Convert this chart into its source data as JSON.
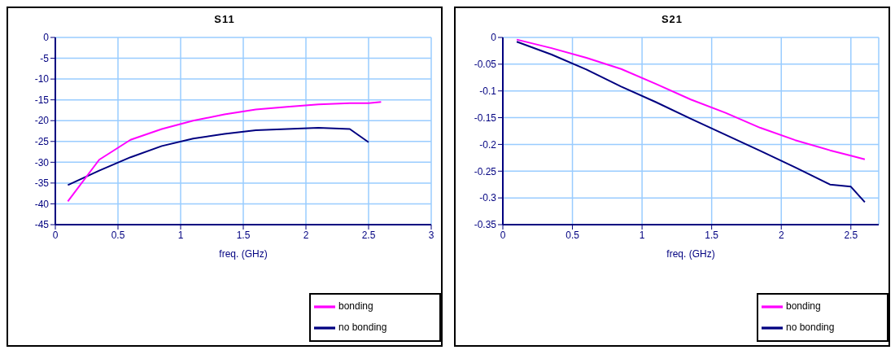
{
  "chart_data": [
    {
      "type": "line",
      "title": "S11",
      "xlabel": "freq. (GHz)",
      "xlim": [
        0,
        3
      ],
      "xticks": [
        0,
        0.5,
        1,
        1.5,
        2,
        2.5,
        3
      ],
      "ylim": [
        -45,
        0
      ],
      "yticks": [
        -45,
        -40,
        -35,
        -30,
        -25,
        -20,
        -15,
        -10,
        -5,
        0
      ],
      "grid": true,
      "legend": "bottom right",
      "marker": "none",
      "line_style": "solid",
      "series": [
        {
          "name": "no bonding",
          "color": "#000080",
          "x": [
            0.1,
            0.35,
            0.6,
            0.85,
            1.1,
            1.35,
            1.6,
            1.85,
            2.1,
            2.35,
            2.5
          ],
          "values": [
            -35.5,
            -32,
            -28.8,
            -26.1,
            -24.3,
            -23.2,
            -22.3,
            -22,
            -21.7,
            -22,
            -25.2
          ]
        },
        {
          "name": "bonding",
          "color": "#ff00ff",
          "x": [
            0.1,
            0.35,
            0.6,
            0.85,
            1.1,
            1.35,
            1.6,
            1.85,
            2.1,
            2.35,
            2.5,
            2.6
          ],
          "values": [
            -39.4,
            -29.4,
            -24.6,
            -22,
            -20,
            -18.5,
            -17.3,
            -16.7,
            -16.1,
            -15.8,
            -15.8,
            -15.5
          ]
        }
      ]
    },
    {
      "type": "line",
      "title": "S21",
      "xlabel": "freq. (GHz)",
      "xlim": [
        0,
        2.7
      ],
      "xticks": [
        0,
        0.5,
        1,
        1.5,
        2,
        2.5
      ],
      "ylim": [
        -0.35,
        0
      ],
      "yticks": [
        -0.35,
        -0.3,
        -0.25,
        -0.2,
        -0.15,
        -0.1,
        -0.05,
        0
      ],
      "grid": true,
      "legend": "bottom right",
      "marker": "none",
      "line_style": "solid",
      "series": [
        {
          "name": "no bonding",
          "color": "#000080",
          "x": [
            0.1,
            0.35,
            0.6,
            0.85,
            1.1,
            1.35,
            1.6,
            1.85,
            2.1,
            2.35,
            2.5,
            2.6
          ],
          "values": [
            -0.008,
            -0.032,
            -0.06,
            -0.092,
            -0.121,
            -0.152,
            -0.182,
            -0.212,
            -0.243,
            -0.275,
            -0.279,
            -0.308
          ]
        },
        {
          "name": "bonding",
          "color": "#ff00ff",
          "x": [
            0.1,
            0.35,
            0.6,
            0.85,
            1.1,
            1.35,
            1.6,
            1.85,
            2.1,
            2.35,
            2.5,
            2.6
          ],
          "values": [
            -0.004,
            -0.02,
            -0.038,
            -0.059,
            -0.087,
            -0.116,
            -0.141,
            -0.169,
            -0.192,
            -0.211,
            -0.221,
            -0.228
          ]
        }
      ]
    }
  ]
}
